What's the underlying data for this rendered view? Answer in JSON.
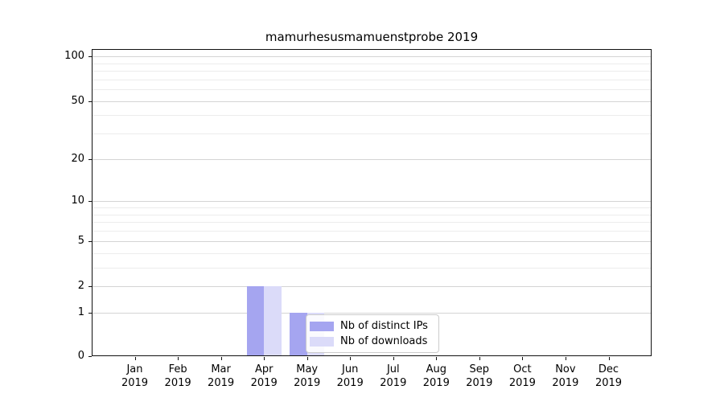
{
  "chart_data": {
    "type": "bar",
    "title": "mamurhesusmamuenstprobe 2019",
    "categories": [
      "Jan",
      "Feb",
      "Mar",
      "Apr",
      "May",
      "Jun",
      "Jul",
      "Aug",
      "Sep",
      "Oct",
      "Nov",
      "Dec"
    ],
    "year_label": "2019",
    "series": [
      {
        "name": "Nb of distinct IPs",
        "color": "#a5a5f0",
        "values": [
          0,
          0,
          0,
          2,
          1,
          0,
          0,
          0,
          0,
          0,
          0,
          0
        ]
      },
      {
        "name": "Nb of downloads",
        "color": "#dbdbf9",
        "values": [
          0,
          0,
          0,
          2,
          1,
          0,
          0,
          0,
          0,
          0,
          0,
          0
        ]
      }
    ],
    "xlabel": "",
    "ylabel": "",
    "y_scale": "log1p",
    "ylim": [
      0,
      110
    ],
    "y_major_ticks": [
      0,
      1,
      2,
      5,
      10,
      20,
      50,
      100
    ],
    "y_minor_gridlines": [
      3,
      4,
      6,
      7,
      8,
      9,
      30,
      40,
      60,
      70,
      80,
      90
    ],
    "grid": "horizontal",
    "legend_position": "lower center",
    "colors": {
      "major_grid": "#d4d4d4",
      "minor_grid": "#ececec",
      "axis": "#111111",
      "background": "#ffffff"
    }
  }
}
